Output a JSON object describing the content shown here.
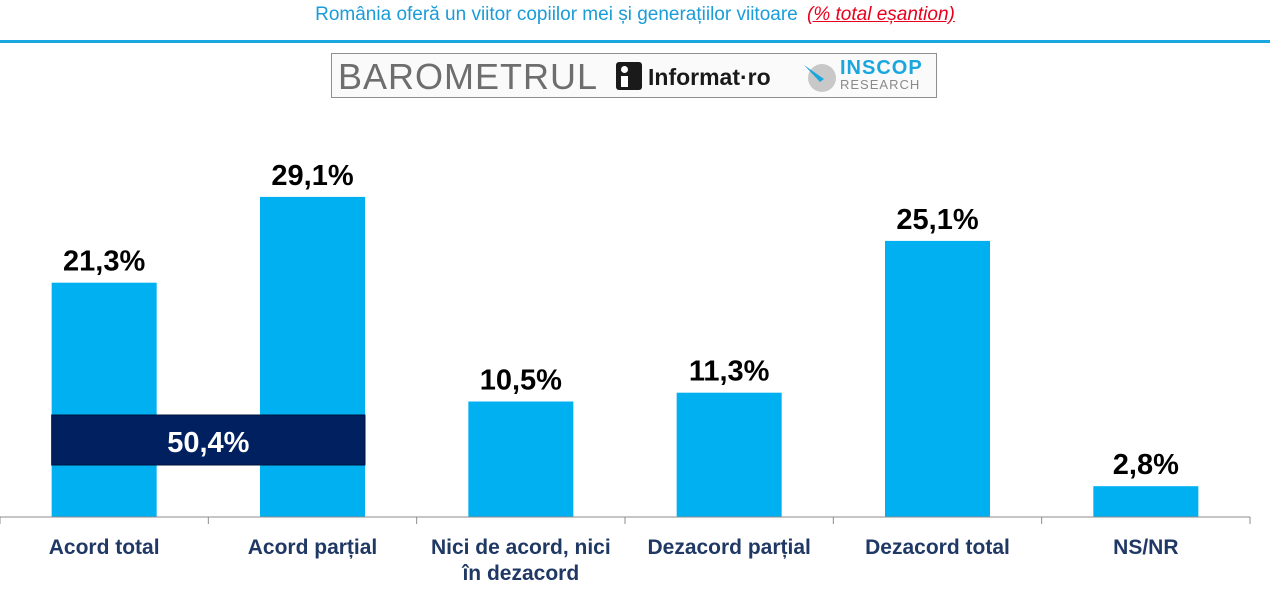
{
  "header": {
    "title": "România oferă un viitor copiilor mei și generațiilor viitoare",
    "note": "(% total eșantion)"
  },
  "logos": {
    "barometrul": "BAROMETRUL",
    "informat": "Informat·ro",
    "inscop": "INSCOP",
    "research": "RESEARCH"
  },
  "colors": {
    "bar": "#00b0f0",
    "summary_box": "#002060",
    "category_text": "#1f3864",
    "title": "#1a9cd8",
    "note": "#e8001c"
  },
  "chart_data": {
    "type": "bar",
    "categories": [
      [
        "Acord total"
      ],
      [
        "Acord parțial"
      ],
      [
        "Nici de acord, nici",
        "în dezacord"
      ],
      [
        "Dezacord parțial"
      ],
      [
        "Dezacord total"
      ],
      [
        "NS/NR"
      ]
    ],
    "values": [
      21.3,
      29.1,
      10.5,
      11.3,
      25.1,
      2.8
    ],
    "value_labels": [
      "21,3%",
      "29,1%",
      "10,5%",
      "11,3%",
      "25,1%",
      "2,8%"
    ],
    "ylim": [
      0,
      35
    ],
    "grid": false,
    "summary": {
      "label": "50,4%",
      "value": 50.4,
      "spans_categories": [
        0,
        1
      ]
    }
  }
}
